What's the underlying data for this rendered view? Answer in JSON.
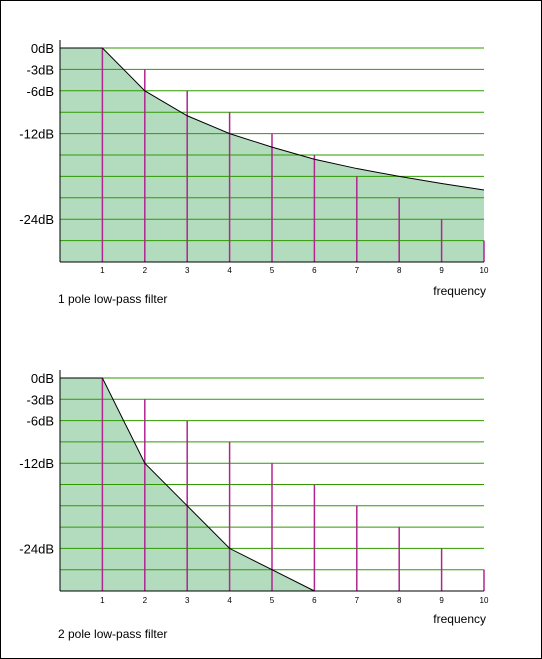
{
  "colors": {
    "fill": "#b3dcbf",
    "gridline": "#2e9a00",
    "harmonic": "#b0258f",
    "curve": "#000000",
    "axis": "#000000"
  },
  "chart_data": [
    {
      "type": "area",
      "title": "1 pole low-pass filter",
      "xlabel": "frequency",
      "ylabel": "",
      "x": [
        1,
        2,
        3,
        4,
        5,
        6,
        7,
        8,
        9,
        10
      ],
      "x_tick_labels": [
        "1",
        "2",
        "3",
        "4",
        "5",
        "6",
        "7",
        "8",
        "9",
        "10"
      ],
      "y_tick_labels": [
        {
          "value": 0,
          "label": "0dB"
        },
        {
          "value": -3,
          "label": "-3dB"
        },
        {
          "value": -6,
          "label": "-6dB"
        },
        {
          "value": -12,
          "label": "-12dB"
        },
        {
          "value": -24,
          "label": "-24dB"
        }
      ],
      "gridlines_db": [
        0,
        -3,
        -6,
        -9,
        -12,
        -15,
        -18,
        -21,
        -24,
        -27
      ],
      "ylim": [
        -30,
        0
      ],
      "xlim": [
        0,
        10
      ],
      "series": [
        {
          "values": [
            0,
            -6,
            -9.5,
            -12,
            -13.9,
            -15.6,
            -16.9,
            -18,
            -19,
            -19.9
          ]
        }
      ],
      "harmonics": [
        {
          "x": 1,
          "db": 0
        },
        {
          "x": 2,
          "db": -3
        },
        {
          "x": 3,
          "db": -6
        },
        {
          "x": 4,
          "db": -9
        },
        {
          "x": 5,
          "db": -12
        },
        {
          "x": 6,
          "db": -15
        },
        {
          "x": 7,
          "db": -18
        },
        {
          "x": 8,
          "db": -21
        },
        {
          "x": 9,
          "db": -24
        },
        {
          "x": 10,
          "db": -27
        }
      ],
      "grid": true
    },
    {
      "type": "area",
      "title": "2 pole low-pass filter",
      "xlabel": "frequency",
      "ylabel": "",
      "x": [
        1,
        2,
        3,
        4,
        5,
        6
      ],
      "x_tick_labels": [
        "1",
        "2",
        "3",
        "4",
        "5",
        "6",
        "7",
        "8",
        "9",
        "10"
      ],
      "y_tick_labels": [
        {
          "value": 0,
          "label": "0dB"
        },
        {
          "value": -3,
          "label": "-3dB"
        },
        {
          "value": -6,
          "label": "-6dB"
        },
        {
          "value": -12,
          "label": "-12dB"
        },
        {
          "value": -24,
          "label": "-24dB"
        }
      ],
      "gridlines_db": [
        0,
        -3,
        -6,
        -9,
        -12,
        -15,
        -18,
        -21,
        -24,
        -27
      ],
      "ylim": [
        -30,
        0
      ],
      "xlim": [
        0,
        10
      ],
      "series": [
        {
          "values": [
            0,
            -12,
            -18,
            -24,
            -27,
            -30
          ]
        }
      ],
      "harmonics": [
        {
          "x": 1,
          "db": 0
        },
        {
          "x": 2,
          "db": -3
        },
        {
          "x": 3,
          "db": -6
        },
        {
          "x": 4,
          "db": -9
        },
        {
          "x": 5,
          "db": -12
        },
        {
          "x": 6,
          "db": -15
        },
        {
          "x": 7,
          "db": -18
        },
        {
          "x": 8,
          "db": -21
        },
        {
          "x": 9,
          "db": -24
        },
        {
          "x": 10,
          "db": -27
        }
      ],
      "grid": true
    }
  ]
}
